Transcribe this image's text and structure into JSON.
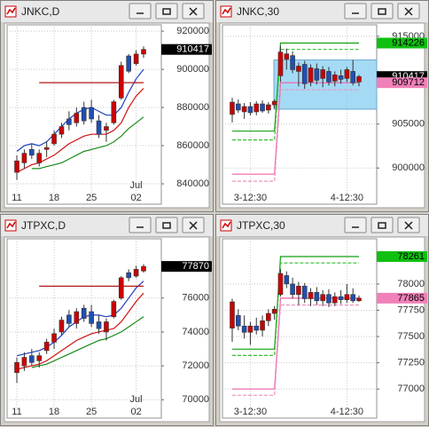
{
  "chart_data": [
    {
      "type": "candlestick",
      "title": "JNKC,D",
      "grid": true,
      "up_color": "#cc0000",
      "down_color": "#1f4fb4",
      "categories": [
        "11",
        null,
        null,
        null,
        null,
        "18",
        null,
        null,
        null,
        null,
        "25",
        null,
        null,
        null,
        null,
        null,
        "02",
        null
      ],
      "month_label": "Jul",
      "open": [
        846000,
        851000,
        858000,
        851000,
        858000,
        861000,
        866000,
        874000,
        872000,
        880000,
        880000,
        873000,
        868000,
        872000,
        885000,
        907000,
        903000,
        908000
      ],
      "high": [
        855000,
        858000,
        861000,
        858000,
        862000,
        868000,
        872000,
        878000,
        880000,
        883000,
        884000,
        876000,
        872000,
        884000,
        904000,
        908000,
        910000,
        912000
      ],
      "low": [
        842000,
        848000,
        853000,
        849000,
        854000,
        860000,
        864000,
        868000,
        870000,
        871000,
        872000,
        864000,
        862000,
        871000,
        884000,
        898000,
        902000,
        906000
      ],
      "close": [
        852000,
        856000,
        855000,
        856000,
        859000,
        866000,
        870000,
        871000,
        877000,
        873000,
        874000,
        866000,
        870000,
        883000,
        902000,
        899000,
        908000,
        910417
      ],
      "series": [
        {
          "color": "#1f3fbf",
          "values": [
            857000,
            860000,
            861000,
            860000,
            862000,
            866000,
            870000,
            874000,
            877000,
            879000,
            880000,
            878000,
            876000,
            876000,
            880000,
            888000,
            895000,
            900000
          ]
        },
        {
          "color": "#d01010",
          "values": [
            846000,
            848000,
            850000,
            851000,
            853000,
            855000,
            858000,
            861000,
            863000,
            865000,
            866000,
            866000,
            866000,
            868000,
            872000,
            880000,
            886000,
            890000
          ]
        },
        {
          "color": "#1a8a1a",
          "values": [
            null,
            null,
            848000,
            848000,
            849000,
            850000,
            851000,
            853000,
            855000,
            857000,
            858000,
            859000,
            860000,
            862000,
            865000,
            869000,
            872000,
            875000
          ]
        },
        {
          "color": "#b01818",
          "values": [
            null,
            null,
            null,
            893000,
            893000,
            893000,
            893000,
            893000,
            893000,
            893000,
            893000,
            893000,
            893000,
            893000,
            893000,
            893000,
            893000,
            893000
          ]
        }
      ],
      "ylim": [
        836300,
        923300
      ],
      "yticks": [
        920000,
        900000,
        880000,
        860000,
        840000
      ],
      "price_labels": [
        {
          "value": 910417,
          "color": "#000000",
          "text_color": "#ffffff"
        }
      ]
    },
    {
      "type": "candlestick",
      "title": "JNKC,30",
      "grid": true,
      "up_color": "#cc0000",
      "down_color": "#1f4fb4",
      "categories": [
        null,
        null,
        null,
        "3-12:30",
        null,
        null,
        null,
        null,
        null,
        null,
        null,
        null,
        null,
        null,
        null,
        null,
        null,
        null,
        null,
        "4-12:30",
        null,
        null
      ],
      "open": [
        906100,
        907300,
        906400,
        907000,
        906400,
        907300,
        906600,
        907200,
        910500,
        912400,
        912800,
        911000,
        911800,
        909800,
        911300,
        910200,
        911000,
        909900,
        910500,
        910200,
        911000,
        909800
      ],
      "high": [
        908000,
        907800,
        907400,
        907500,
        907600,
        907700,
        907500,
        907800,
        913900,
        913600,
        913300,
        912000,
        912200,
        911800,
        911900,
        911600,
        911500,
        911000,
        911200,
        911500,
        912300,
        910600
      ],
      "low": [
        905200,
        906300,
        905600,
        906000,
        906000,
        906300,
        906200,
        906800,
        909800,
        911200,
        910800,
        909300,
        909000,
        909300,
        909500,
        909200,
        909400,
        909300,
        909600,
        909800,
        909400,
        909300
      ],
      "close": [
        907500,
        906600,
        907000,
        906300,
        907300,
        906500,
        907200,
        907600,
        913200,
        913000,
        911200,
        911600,
        909600,
        911400,
        910000,
        911200,
        909800,
        910600,
        910100,
        911200,
        909700,
        910417
      ],
      "series": [
        {
          "color": "#10a010",
          "values": [
            904200,
            904200,
            904200,
            904200,
            904200,
            904200,
            904200,
            904200,
            914226,
            914226,
            914226,
            914226,
            914226,
            914226,
            914226,
            914226,
            914226,
            914226,
            914226,
            914226,
            914226,
            914226
          ]
        },
        {
          "color": "#30c030",
          "dash": true,
          "values": [
            903200,
            903200,
            903200,
            903200,
            903200,
            903200,
            903200,
            903200,
            913500,
            913500,
            913500,
            913500,
            913500,
            913500,
            913500,
            913500,
            913500,
            913500,
            913500,
            913500,
            913500,
            913500
          ]
        },
        {
          "color": "#f060a8",
          "values": [
            899300,
            899300,
            899300,
            899300,
            899300,
            899300,
            899300,
            899300,
            909712,
            909712,
            909712,
            909712,
            909712,
            909712,
            909712,
            909712,
            909712,
            909712,
            909712,
            909712,
            909712,
            909712
          ]
        },
        {
          "color": "#f090c0",
          "dash": true,
          "values": [
            898500,
            898500,
            898500,
            898500,
            898500,
            898500,
            898500,
            898500,
            908900,
            908900,
            908900,
            908900,
            908900,
            908900,
            908900,
            908900,
            908900,
            908900,
            908900,
            908900,
            908900,
            908900
          ]
        }
      ],
      "zone": {
        "low": 906700,
        "high": 912300,
        "color": "#87cdf0"
      },
      "ylim": [
        897400,
        916300
      ],
      "yticks": [
        915000,
        905000,
        900000
      ],
      "price_labels": [
        {
          "value": 914226,
          "color": "#10c010",
          "text_color": "#000000"
        },
        {
          "value": 910417,
          "color": "#000000",
          "text_color": "#ffffff"
        },
        {
          "value": 909712,
          "color": "#f080b8",
          "text_color": "#000000"
        }
      ]
    },
    {
      "type": "candlestick",
      "title": "JTPXC,D",
      "grid": true,
      "up_color": "#cc0000",
      "down_color": "#1f4fb4",
      "categories": [
        "11",
        null,
        null,
        null,
        null,
        "18",
        null,
        null,
        null,
        null,
        "25",
        null,
        null,
        null,
        null,
        null,
        "02",
        null
      ],
      "month_label": "Jul",
      "open": [
        71600,
        72000,
        72600,
        72300,
        72900,
        73400,
        74000,
        75000,
        74500,
        75400,
        75200,
        74600,
        74000,
        74900,
        76000,
        77500,
        77300,
        77600
      ],
      "high": [
        72500,
        72800,
        73000,
        72800,
        73600,
        74200,
        74900,
        75300,
        75400,
        75600,
        75600,
        75000,
        74800,
        75900,
        77300,
        77700,
        77900,
        78000
      ],
      "low": [
        71000,
        71700,
        72000,
        71900,
        72700,
        73000,
        73800,
        74300,
        74200,
        74600,
        74300,
        73900,
        73500,
        74800,
        75900,
        77000,
        77200,
        77500
      ],
      "close": [
        72200,
        72500,
        72200,
        72600,
        73400,
        73900,
        74700,
        74500,
        75200,
        74800,
        74500,
        74200,
        74600,
        75800,
        77200,
        77200,
        77700,
        77870
      ],
      "series": [
        {
          "color": "#1f3fbf",
          "values": [
            72600,
            72700,
            72800,
            72900,
            73100,
            73400,
            73800,
            74300,
            74600,
            74900,
            75000,
            75000,
            74900,
            75000,
            75400,
            76000,
            76600,
            77000
          ]
        },
        {
          "color": "#d01010",
          "values": [
            71800,
            71900,
            72000,
            72100,
            72300,
            72600,
            72900,
            73200,
            73500,
            73700,
            73900,
            74000,
            74100,
            74200,
            74600,
            75200,
            75800,
            76300
          ]
        },
        {
          "color": "#1a8a1a",
          "values": [
            null,
            null,
            71900,
            72000,
            72100,
            72300,
            72500,
            72700,
            72900,
            73100,
            73300,
            73500,
            73600,
            73800,
            74000,
            74300,
            74600,
            74900
          ]
        },
        {
          "color": "#b01818",
          "values": [
            null,
            null,
            null,
            76700,
            76700,
            76700,
            76700,
            76700,
            76700,
            76700,
            76700,
            76700,
            76700,
            76700,
            76700,
            76700,
            76700,
            76700
          ]
        }
      ],
      "ylim": [
        69700,
        79500
      ],
      "yticks": [
        76000,
        74000,
        72000,
        70000
      ],
      "price_labels": [
        {
          "value": 77870,
          "color": "#000000",
          "text_color": "#ffffff"
        }
      ]
    },
    {
      "type": "candlestick",
      "title": "JTPXC,30",
      "grid": true,
      "up_color": "#cc0000",
      "down_color": "#1f4fb4",
      "categories": [
        null,
        null,
        null,
        "3-12:30",
        null,
        null,
        null,
        null,
        null,
        null,
        null,
        null,
        null,
        null,
        null,
        null,
        null,
        null,
        null,
        "4-12:30",
        null,
        null
      ],
      "open": [
        77580,
        77700,
        77600,
        77540,
        77600,
        77560,
        77650,
        77720,
        77900,
        78080,
        78000,
        77900,
        77980,
        77860,
        77920,
        77840,
        77900,
        77820,
        77880,
        77850,
        77900,
        77840
      ],
      "high": [
        77860,
        77760,
        77700,
        77640,
        77680,
        77700,
        77760,
        77790,
        78140,
        78120,
        78060,
        78020,
        78010,
        77960,
        77970,
        77940,
        77950,
        77920,
        77940,
        78000,
        77960,
        77890
      ],
      "low": [
        77450,
        77560,
        77480,
        77420,
        77520,
        77500,
        77600,
        77660,
        77880,
        77960,
        77860,
        77800,
        77820,
        77790,
        77800,
        77790,
        77780,
        77790,
        77810,
        77820,
        77820,
        77830
      ],
      "close": [
        77830,
        77600,
        77540,
        77600,
        77560,
        77650,
        77720,
        77760,
        78100,
        78000,
        77900,
        77980,
        77860,
        77920,
        77840,
        77900,
        77820,
        77880,
        77850,
        77900,
        77840,
        77865
      ],
      "series": [
        {
          "color": "#10a010",
          "values": [
            77380,
            77380,
            77380,
            77380,
            77380,
            77380,
            77380,
            77380,
            78261,
            78261,
            78261,
            78261,
            78261,
            78261,
            78261,
            78261,
            78261,
            78261,
            78261,
            78261,
            78261,
            78261
          ]
        },
        {
          "color": "#30c030",
          "dash": true,
          "values": [
            77320,
            77320,
            77320,
            77320,
            77320,
            77320,
            77320,
            77320,
            78200,
            78200,
            78200,
            78200,
            78200,
            78200,
            78200,
            78200,
            78200,
            78200,
            78200,
            78200,
            78200,
            78200
          ]
        },
        {
          "color": "#f060a8",
          "values": [
            77000,
            77000,
            77000,
            77000,
            77000,
            77000,
            77000,
            77000,
            77865,
            77865,
            77865,
            77865,
            77865,
            77865,
            77865,
            77865,
            77865,
            77865,
            77865,
            77865,
            77865,
            77865
          ]
        },
        {
          "color": "#f090c0",
          "dash": true,
          "values": [
            76940,
            76940,
            76940,
            76940,
            76940,
            76940,
            76940,
            76940,
            77800,
            77800,
            77800,
            77800,
            77800,
            77800,
            77800,
            77800,
            77800,
            77800,
            77800,
            77800,
            77800,
            77800
          ]
        }
      ],
      "ylim": [
        76850,
        78430
      ],
      "yticks": [
        78000,
        77750,
        77500,
        77250,
        77000
      ],
      "price_labels": [
        {
          "value": 78261,
          "color": "#10c010",
          "text_color": "#000000"
        },
        {
          "value": 77865,
          "color": "#f080b8",
          "text_color": "#000000"
        }
      ]
    }
  ]
}
